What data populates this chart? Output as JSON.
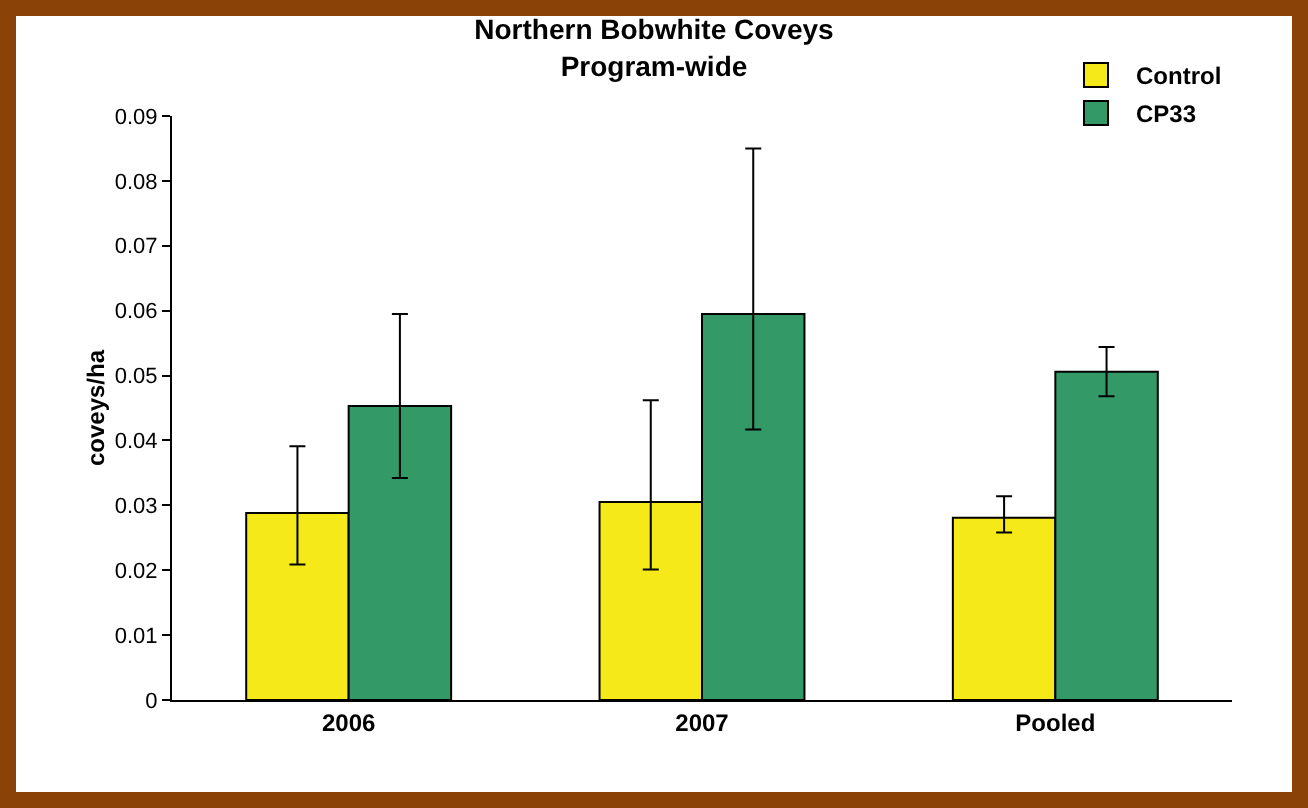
{
  "chart_data": {
    "type": "bar",
    "title": "Northern Bobwhite Coveys\nProgram-wide",
    "ylabel": "coveys/ha",
    "categories": [
      "2006",
      "2007",
      "Pooled"
    ],
    "series": [
      {
        "name": "Control",
        "color": "#f5e91a",
        "values": [
          0.0288,
          0.0305,
          0.0281
        ],
        "errors": [
          [
            0.0209,
            0.0391
          ],
          [
            0.0201,
            0.0462
          ],
          [
            0.0258,
            0.0314
          ]
        ]
      },
      {
        "name": "CP33",
        "color": "#339966",
        "values": [
          0.0453,
          0.0595,
          0.0506
        ],
        "errors": [
          [
            0.0342,
            0.0595
          ],
          [
            0.0417,
            0.085
          ],
          [
            0.0468,
            0.0544
          ]
        ]
      }
    ],
    "ylim": [
      0,
      0.09
    ],
    "yticks": [
      0,
      0.01,
      0.02,
      0.03,
      0.04,
      0.05,
      0.06,
      0.07,
      0.08,
      0.09
    ],
    "grid": false,
    "legend": "top right"
  }
}
